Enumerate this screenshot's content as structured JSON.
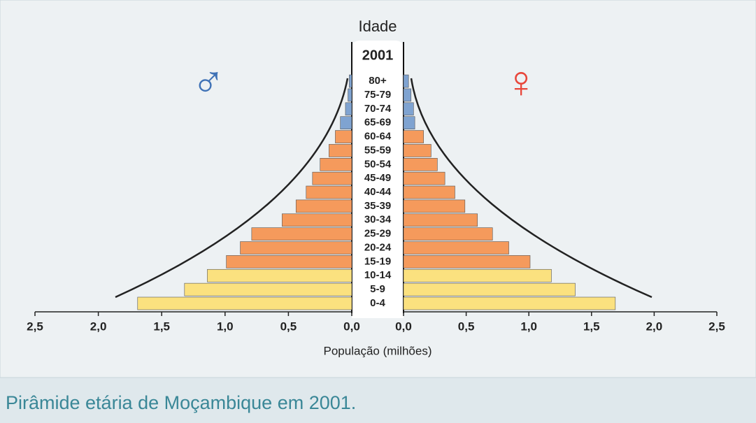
{
  "chart_data": {
    "type": "pyramid",
    "title": "Idade",
    "year": "2001",
    "xlabel": "População (milhões)",
    "caption": "Pirâmide etária de Moçambique em 2001.",
    "categories": [
      "0-4",
      "5-9",
      "10-14",
      "15-19",
      "20-24",
      "25-29",
      "30-34",
      "35-39",
      "40-44",
      "45-49",
      "50-54",
      "55-59",
      "60-64",
      "65-69",
      "70-74",
      "75-79",
      "80+"
    ],
    "bar_colors": [
      "#fbe17f",
      "#fbe17f",
      "#fbe17f",
      "#f59a5c",
      "#f59a5c",
      "#f59a5c",
      "#f59a5c",
      "#f59a5c",
      "#f59a5c",
      "#f59a5c",
      "#f59a5c",
      "#f59a5c",
      "#f59a5c",
      "#7fa3d1",
      "#7fa3d1",
      "#7fa3d1",
      "#7fa3d1"
    ],
    "series": [
      {
        "name": "♂",
        "color": "#3f72b6",
        "values": [
          1.69,
          1.32,
          1.14,
          0.99,
          0.88,
          0.79,
          0.55,
          0.44,
          0.36,
          0.31,
          0.25,
          0.18,
          0.13,
          0.09,
          0.05,
          0.03,
          0.02
        ]
      },
      {
        "name": "♀",
        "color": "#e8463a",
        "values": [
          1.69,
          1.37,
          1.18,
          1.01,
          0.84,
          0.71,
          0.59,
          0.49,
          0.41,
          0.33,
          0.27,
          0.22,
          0.16,
          0.09,
          0.08,
          0.06,
          0.04
        ]
      }
    ],
    "xlim": [
      0,
      2.5
    ],
    "xticks": [
      {
        "value": 0,
        "label": "0,0"
      },
      {
        "value": 0.5,
        "label": "0,5"
      },
      {
        "value": 1,
        "label": "1,0"
      },
      {
        "value": 1.5,
        "label": "1,5"
      },
      {
        "value": 2,
        "label": "2,0"
      },
      {
        "value": 2.5,
        "label": "2,5"
      }
    ]
  }
}
